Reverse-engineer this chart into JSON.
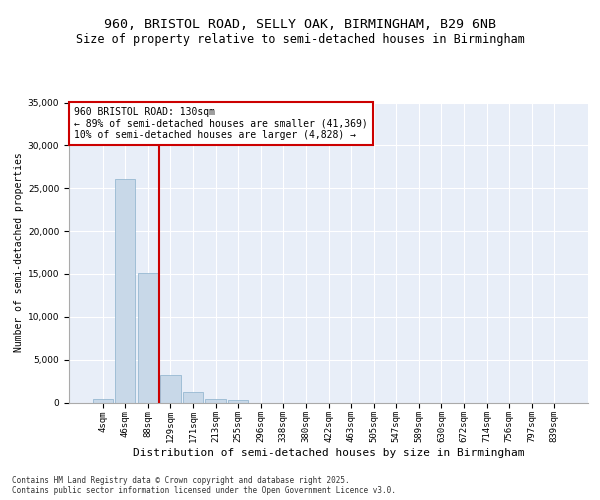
{
  "title1": "960, BRISTOL ROAD, SELLY OAK, BIRMINGHAM, B29 6NB",
  "title2": "Size of property relative to semi-detached houses in Birmingham",
  "xlabel": "Distribution of semi-detached houses by size in Birmingham",
  "ylabel": "Number of semi-detached properties",
  "categories": [
    "4sqm",
    "46sqm",
    "88sqm",
    "129sqm",
    "171sqm",
    "213sqm",
    "255sqm",
    "296sqm",
    "338sqm",
    "380sqm",
    "422sqm",
    "463sqm",
    "505sqm",
    "547sqm",
    "589sqm",
    "630sqm",
    "672sqm",
    "714sqm",
    "756sqm",
    "797sqm",
    "839sqm"
  ],
  "bar_values": [
    400,
    26100,
    15100,
    3200,
    1200,
    450,
    250,
    0,
    0,
    0,
    0,
    0,
    0,
    0,
    0,
    0,
    0,
    0,
    0,
    0,
    0
  ],
  "bar_color": "#c8d8e8",
  "bar_edge_color": "#8ab0cc",
  "subject_line_color": "#cc0000",
  "annotation_text": "960 BRISTOL ROAD: 130sqm\n← 89% of semi-detached houses are smaller (41,369)\n10% of semi-detached houses are larger (4,828) →",
  "annotation_box_color": "#cc0000",
  "ylim": [
    0,
    35000
  ],
  "yticks": [
    0,
    5000,
    10000,
    15000,
    20000,
    25000,
    30000,
    35000
  ],
  "background_color": "#e8eef8",
  "grid_color": "#ffffff",
  "footer_text": "Contains HM Land Registry data © Crown copyright and database right 2025.\nContains public sector information licensed under the Open Government Licence v3.0.",
  "title1_fontsize": 9.5,
  "title2_fontsize": 8.5,
  "xlabel_fontsize": 8,
  "ylabel_fontsize": 7,
  "tick_fontsize": 6.5,
  "annotation_fontsize": 7,
  "footer_fontsize": 5.5
}
